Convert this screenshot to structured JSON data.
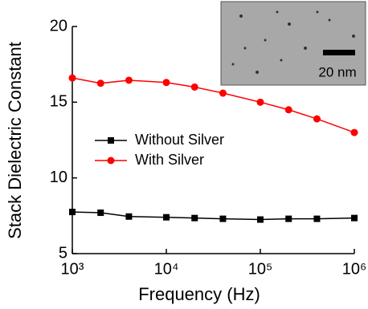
{
  "chart_data": {
    "type": "line",
    "xlabel": "Frequency (Hz)",
    "ylabel": "Stack Dielectric Constant",
    "x": [
      1000,
      2000,
      4000,
      10000,
      20000,
      40000,
      100000,
      200000,
      400000,
      1000000
    ],
    "xscale": "log",
    "xlim": [
      1000,
      1000000
    ],
    "xticks": [
      {
        "value": 1000,
        "label": "10³"
      },
      {
        "value": 10000,
        "label": "10⁴"
      },
      {
        "value": 100000,
        "label": "10⁵"
      },
      {
        "value": 1000000,
        "label": "10⁶"
      }
    ],
    "ylim": [
      5,
      20
    ],
    "yticks": [
      5,
      10,
      15,
      20
    ],
    "legend": "center-left",
    "series": [
      {
        "name": "Without Silver",
        "color": "#000000",
        "marker": "square",
        "values": [
          7.75,
          7.7,
          7.45,
          7.4,
          7.35,
          7.3,
          7.25,
          7.3,
          7.3,
          7.35
        ]
      },
      {
        "name": "With Silver",
        "color": "#ff0000",
        "marker": "circle",
        "values": [
          16.6,
          16.25,
          16.45,
          16.3,
          16.0,
          15.6,
          15.0,
          14.5,
          13.9,
          13.0
        ]
      }
    ],
    "inset": {
      "scale_bar_label": "20 nm"
    }
  }
}
